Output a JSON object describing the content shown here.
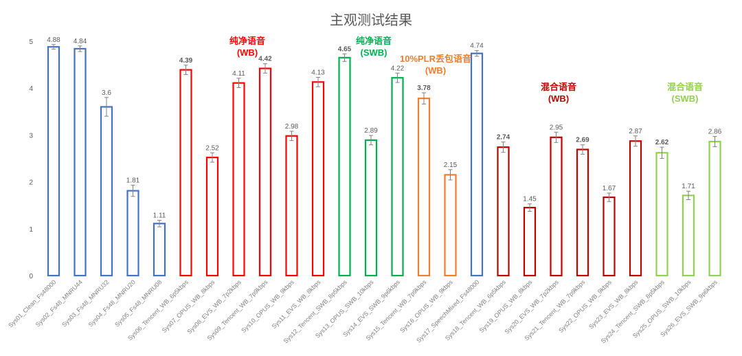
{
  "chart_data": {
    "type": "bar",
    "title": "主观测试结果",
    "xlabel": "",
    "ylabel": "",
    "ylim": [
      0,
      5
    ],
    "yticks": [
      "0",
      "1",
      "2",
      "3",
      "4",
      "5"
    ],
    "grid": false,
    "colors": {
      "blue": "#4472c4",
      "red": "#ff0000",
      "green": "#00b050",
      "orange": "#ed7d31",
      "darkred": "#c00000",
      "lightgreen": "#92d050"
    },
    "bars": [
      {
        "category": "Sys01_Clean_Fs48000",
        "value": 4.88,
        "label": "4.88",
        "color": "blue",
        "err": 0.05,
        "bold": false
      },
      {
        "category": "Sys02_Fs48_MNRU44",
        "value": 4.84,
        "label": "4.84",
        "color": "blue",
        "err": 0.06,
        "bold": false
      },
      {
        "category": "Sys03_Fs48_MNRU32",
        "value": 3.6,
        "label": "3.6",
        "color": "blue",
        "err": 0.2,
        "bold": false
      },
      {
        "category": "Sys04_Fs48_MNRU20",
        "value": 1.81,
        "label": "1.81",
        "color": "blue",
        "err": 0.12,
        "bold": false
      },
      {
        "category": "Sys05_Fs48_MNRU08",
        "value": 1.11,
        "label": "1.11",
        "color": "blue",
        "err": 0.07,
        "bold": false
      },
      {
        "category": "Sys06_Tencent_WB_6p5kbps",
        "value": 4.39,
        "label": "4.39",
        "color": "red",
        "err": 0.1,
        "bold": true
      },
      {
        "category": "Sys07_OPUS_WB_8kbps",
        "value": 2.52,
        "label": "2.52",
        "color": "red",
        "err": 0.1,
        "bold": false
      },
      {
        "category": "Sys08_EVS_WB_7p2kbps",
        "value": 4.11,
        "label": "4.11",
        "color": "red",
        "err": 0.1,
        "bold": false
      },
      {
        "category": "Sys09_Tencent_WB_7p9kbps",
        "value": 4.42,
        "label": "4.42",
        "color": "red",
        "err": 0.1,
        "bold": true
      },
      {
        "category": "Sys10_OPUS_WB_9kbps",
        "value": 2.98,
        "label": "2.98",
        "color": "red",
        "err": 0.1,
        "bold": false
      },
      {
        "category": "Sys11_EVS_WB_8kbps",
        "value": 4.13,
        "label": "4.13",
        "color": "red",
        "err": 0.1,
        "bold": false
      },
      {
        "category": "Sys12_Tencent_SWB_8p5kbps",
        "value": 4.65,
        "label": "4.65",
        "color": "green",
        "err": 0.08,
        "bold": true
      },
      {
        "category": "Sys13_OPUS_SWB_10kbps",
        "value": 2.89,
        "label": "2.89",
        "color": "green",
        "err": 0.1,
        "bold": false
      },
      {
        "category": "Sys14_EVS_SWB_9p6kbps",
        "value": 4.22,
        "label": "4.22",
        "color": "green",
        "err": 0.1,
        "bold": false
      },
      {
        "category": "Sys15_Tencent_WB_7p9kbps",
        "value": 3.78,
        "label": "3.78",
        "color": "orange",
        "err": 0.12,
        "bold": true
      },
      {
        "category": "Sys16_OPUS_WB_9kbps",
        "value": 2.15,
        "label": "2.15",
        "color": "orange",
        "err": 0.11,
        "bold": false
      },
      {
        "category": "Sys17_SpeechMixed_Fs48000",
        "value": 4.74,
        "label": "4.74",
        "color": "blue",
        "err": 0.06,
        "bold": false
      },
      {
        "category": "Sys18_Tencent_WB_6p5kbps",
        "value": 2.74,
        "label": "2.74",
        "color": "darkred",
        "err": 0.11,
        "bold": true
      },
      {
        "category": "Sys19_OPUS_WB_8kbps",
        "value": 1.45,
        "label": "1.45",
        "color": "darkred",
        "err": 0.08,
        "bold": false
      },
      {
        "category": "Sys20_EVS_WB_7p2kbps",
        "value": 2.95,
        "label": "2.95",
        "color": "darkred",
        "err": 0.11,
        "bold": false
      },
      {
        "category": "Sys21_Tencent_WB_7p9kbps",
        "value": 2.69,
        "label": "2.69",
        "color": "darkred",
        "err": 0.1,
        "bold": true
      },
      {
        "category": "Sys22_OPUS_WB_9kbps",
        "value": 1.67,
        "label": "1.67",
        "color": "darkred",
        "err": 0.09,
        "bold": false
      },
      {
        "category": "Sys23_EVS_WB_8kbps",
        "value": 2.87,
        "label": "2.87",
        "color": "darkred",
        "err": 0.11,
        "bold": false
      },
      {
        "category": "Sys24_Tencent_SWB_8p5kbps",
        "value": 2.62,
        "label": "2.62",
        "color": "lightgreen",
        "err": 0.12,
        "bold": true
      },
      {
        "category": "Sys25_OPUS_SWB_10kbps",
        "value": 1.71,
        "label": "1.71",
        "color": "lightgreen",
        "err": 0.09,
        "bold": false
      },
      {
        "category": "Sys26_EVS_SWB_9p6kbps",
        "value": 2.86,
        "label": "2.86",
        "color": "lightgreen",
        "err": 0.11,
        "bold": false
      }
    ],
    "annotations": [
      {
        "line1": "纯净语音",
        "line2": "(WB)",
        "color": "red"
      },
      {
        "line1": "纯净语音",
        "line2": "(SWB)",
        "color": "green"
      },
      {
        "line1": "10%PLR丢包语音",
        "line2": "(WB)",
        "color": "orange"
      },
      {
        "line1": "混合语音",
        "line2": "(WB)",
        "color": "darkred"
      },
      {
        "line1": "混合语音",
        "line2": "(SWB)",
        "color": "lightgreen"
      }
    ]
  }
}
